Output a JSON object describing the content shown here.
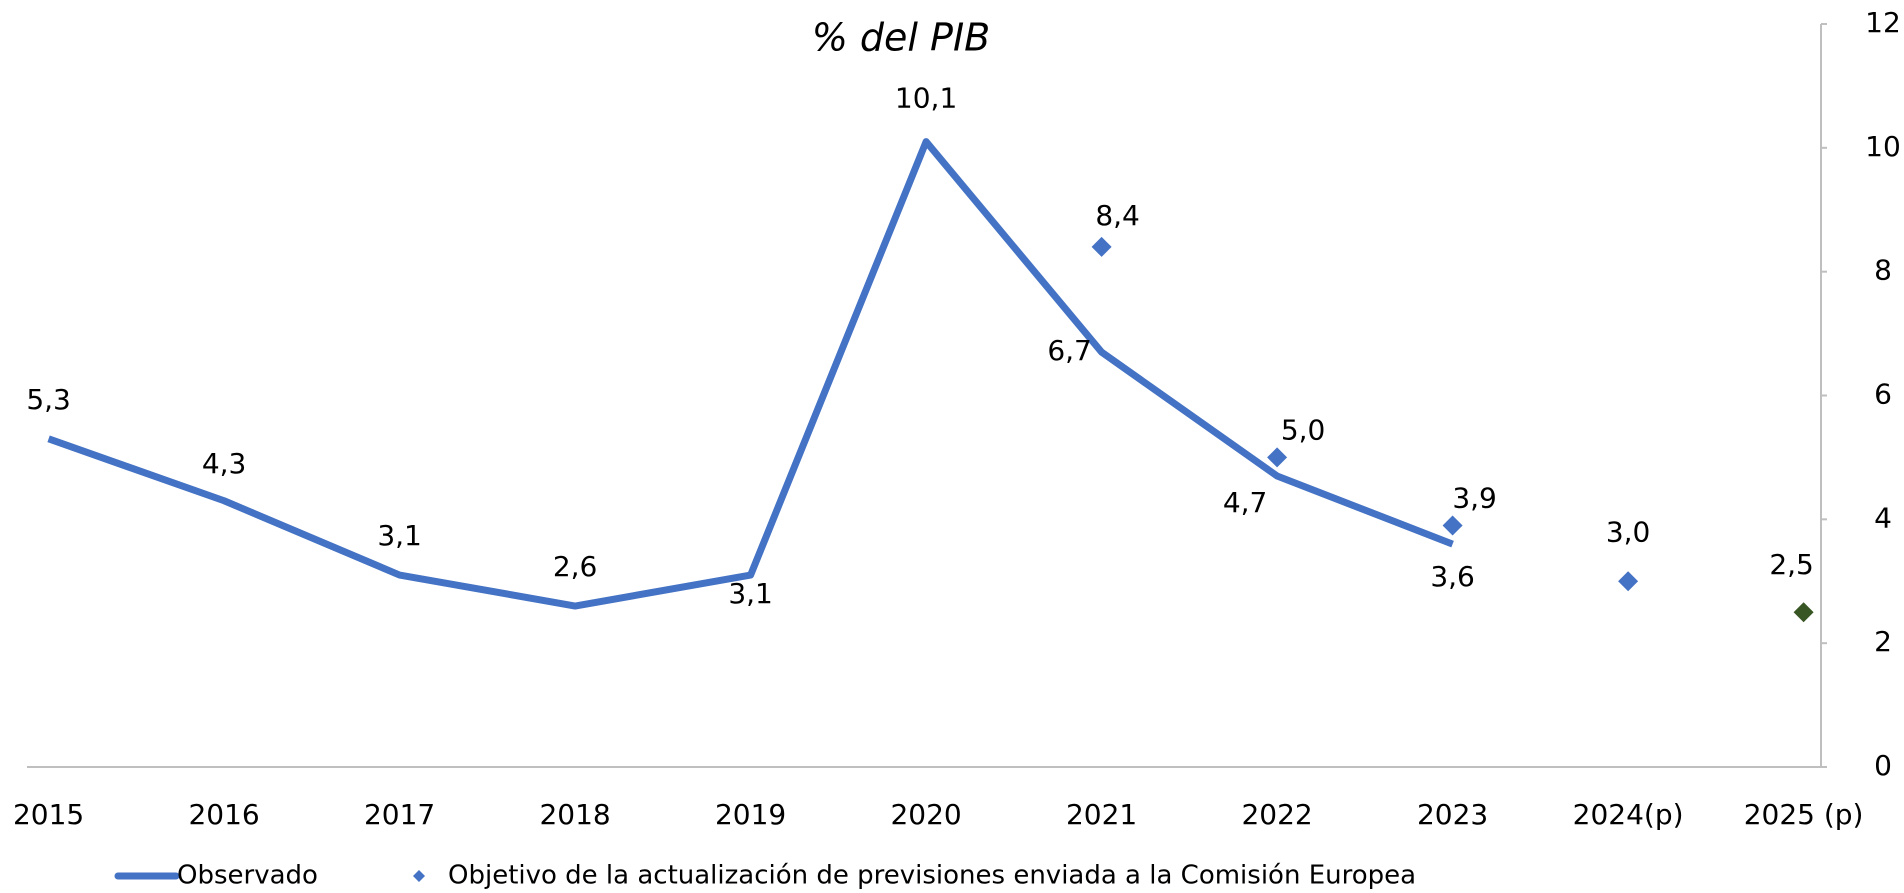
{
  "chart_data": {
    "type": "line",
    "title": "% del PIB",
    "categories": [
      "2015",
      "2016",
      "2017",
      "2018",
      "2019",
      "2020",
      "2021",
      "2022",
      "2023",
      "2024(p)",
      "2025 (p)"
    ],
    "series": [
      {
        "name": "Observado",
        "color": "#4472c4",
        "kind": "line",
        "values": [
          5.3,
          4.3,
          3.1,
          2.6,
          3.1,
          10.1,
          6.7,
          4.7,
          3.6,
          null,
          null
        ],
        "value_labels": [
          "5,3",
          "4,3",
          "3,1",
          "2,6",
          "3,1",
          "10,1",
          "6,7",
          "4,7",
          "3,6",
          null,
          null
        ]
      },
      {
        "name": "Objetivo de la actualización de previsiones enviada a la Comisión Europea",
        "color": "#4472c4",
        "kind": "marker",
        "colors": [
          null,
          null,
          null,
          null,
          null,
          null,
          "#4472c4",
          "#4472c4",
          "#4472c4",
          "#4472c4",
          "#375623"
        ],
        "values": [
          null,
          null,
          null,
          null,
          null,
          null,
          8.4,
          5.0,
          3.9,
          3.0,
          2.5
        ],
        "value_labels": [
          null,
          null,
          null,
          null,
          null,
          null,
          "8,4",
          "5,0",
          "3,9",
          "3,0",
          "2,5"
        ]
      }
    ],
    "ylim": [
      0,
      12
    ],
    "yticks": [
      0,
      2,
      4,
      6,
      8,
      10,
      12
    ],
    "y_axis_position": "right",
    "grid": false,
    "legend": "bottom"
  }
}
